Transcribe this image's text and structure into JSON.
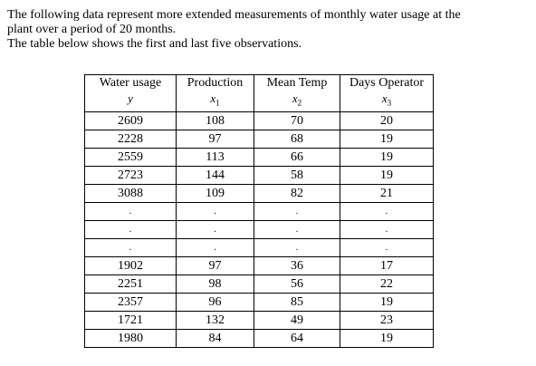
{
  "intro": {
    "line1": "The following data represent more extended measurements of monthly water usage at the",
    "line2": "plant over a period of 20 months.",
    "line3": "The table below shows the first and last five observations."
  },
  "table": {
    "headers": [
      {
        "label": "Water usage",
        "symbol": "y",
        "subscript": ""
      },
      {
        "label": "Production",
        "symbol": "x",
        "subscript": "1"
      },
      {
        "label": "Mean Temp",
        "symbol": "x",
        "subscript": "2"
      },
      {
        "label": "Days Operator",
        "symbol": "x",
        "subscript": "3"
      }
    ],
    "first_rows": [
      [
        "2609",
        "108",
        "70",
        "20"
      ],
      [
        "2228",
        "97",
        "68",
        "19"
      ],
      [
        "2559",
        "113",
        "66",
        "19"
      ],
      [
        "2723",
        "144",
        "58",
        "19"
      ],
      [
        "3088",
        "109",
        "82",
        "21"
      ]
    ],
    "ellipsis_rows": [
      [
        ".",
        ".",
        ".",
        "."
      ],
      [
        ".",
        ".",
        ".",
        "."
      ],
      [
        ".",
        ".",
        ".",
        "."
      ]
    ],
    "last_rows": [
      [
        "1902",
        "97",
        "36",
        "17"
      ],
      [
        "2251",
        "98",
        "56",
        "22"
      ],
      [
        "2357",
        "96",
        "85",
        "19"
      ],
      [
        "1721",
        "132",
        "49",
        "23"
      ],
      [
        "1980",
        "84",
        "64",
        "19"
      ]
    ]
  }
}
